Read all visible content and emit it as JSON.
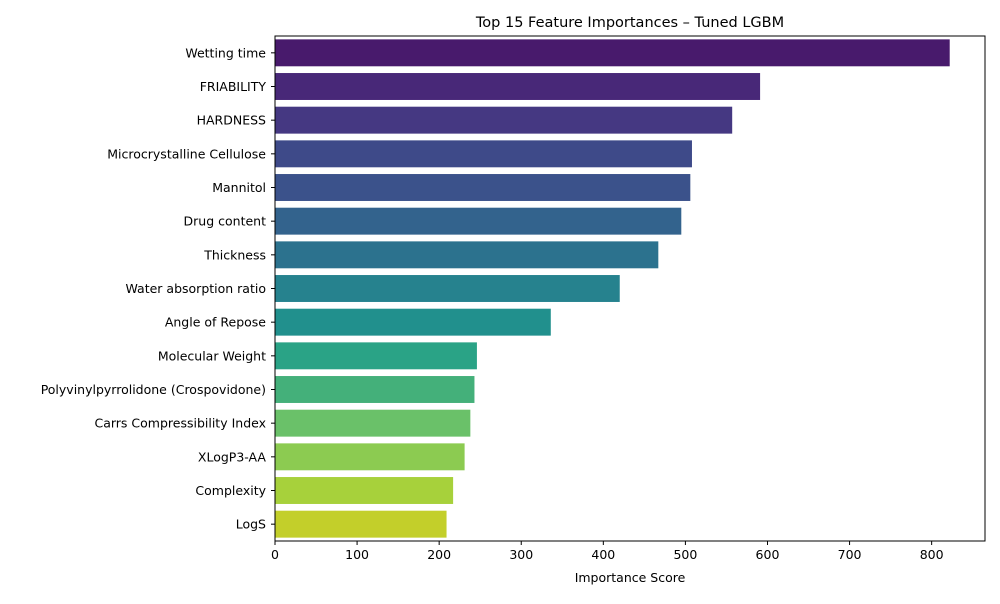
{
  "chart_data": {
    "type": "bar",
    "orientation": "horizontal",
    "title": "Top 15 Feature Importances – Tuned LGBM",
    "xlabel": "Importance Score",
    "ylabel": "",
    "xlim": [
      0,
      865
    ],
    "x_ticks": [
      "0",
      "100",
      "200",
      "300",
      "400",
      "500",
      "600",
      "700",
      "800"
    ],
    "grid": false,
    "categories": [
      "Wetting time",
      "FRIABILITY",
      "HARDNESS",
      "Microcrystalline Cellulose",
      "Mannitol",
      "Drug content",
      "Thickness",
      "Water absorption ratio",
      "Angle of Repose",
      "Molecular Weight",
      "Polyvinylpyrrolidone (Crospovidone)",
      "Carrs Compressibility Index",
      "XLogP3-AA",
      "Complexity",
      "LogS"
    ],
    "values": [
      822,
      591,
      557,
      508,
      506,
      495,
      467,
      420,
      336,
      246,
      243,
      238,
      231,
      217,
      209
    ],
    "colors": [
      "#481a6c",
      "#482878",
      "#453882",
      "#3e4a89",
      "#3b528b",
      "#33638d",
      "#2c728e",
      "#26828e",
      "#21908d",
      "#2aa386",
      "#44b07a",
      "#6ac169",
      "#8ccb51",
      "#a7d13b",
      "#c3cf2a"
    ],
    "palette": "viridis"
  }
}
